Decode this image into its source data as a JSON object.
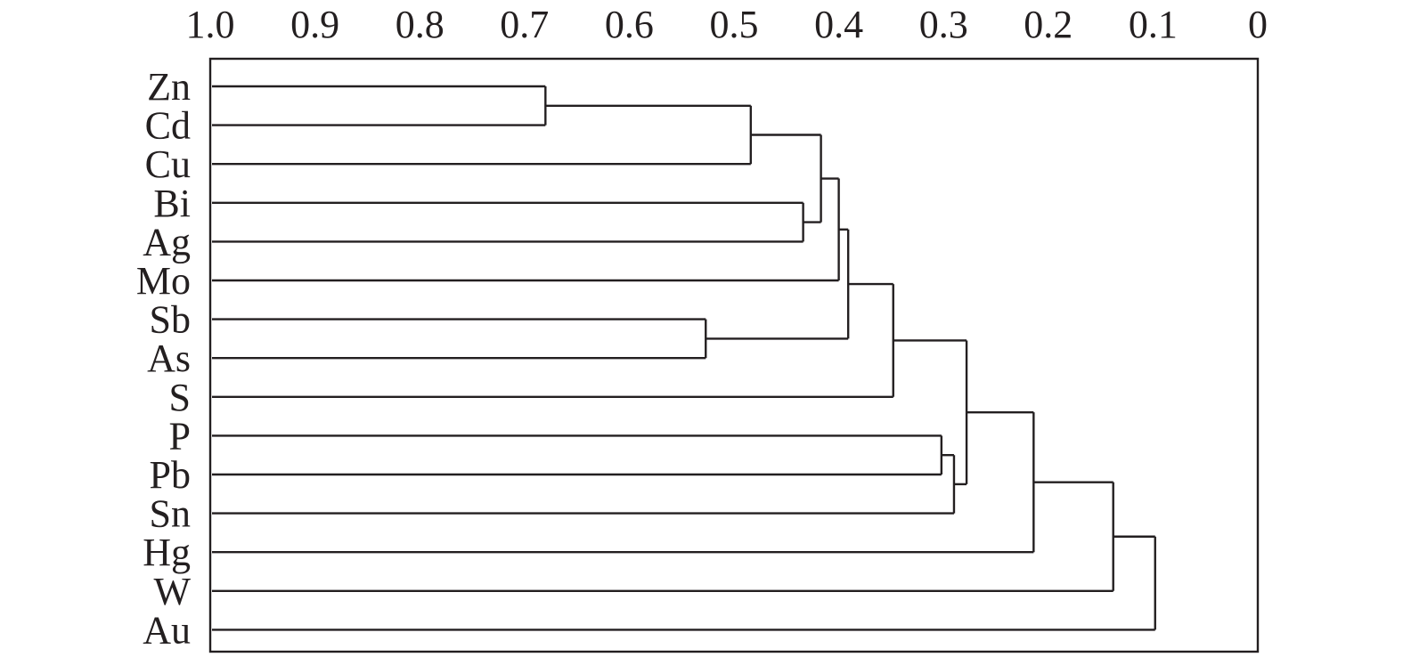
{
  "chart_data": {
    "type": "dendrogram",
    "x_axis": {
      "ticks": [
        1.0,
        0.9,
        0.8,
        0.7,
        0.6,
        0.5,
        0.4,
        0.3,
        0.2,
        0.1,
        0
      ],
      "tick_labels": [
        "1.0",
        "0.9",
        "0.8",
        "0.7",
        "0.6",
        "0.5",
        "0.4",
        "0.3",
        "0.2",
        "0.1",
        "0"
      ],
      "range": [
        1.0,
        0
      ],
      "position": "top"
    },
    "grid": false,
    "leaves": [
      "Zn",
      "Cd",
      "Cu",
      "Bi",
      "Ag",
      "Mo",
      "Sb",
      "As",
      "S",
      "P",
      "Pb",
      "Sn",
      "Hg",
      "W",
      "Au"
    ],
    "merges": [
      {
        "a": "Zn",
        "b": "Cd",
        "value": 0.68
      },
      {
        "a": "Zn+Cd",
        "b": "Cu",
        "value": 0.484
      },
      {
        "a": "Bi",
        "b": "Ag",
        "value": 0.434
      },
      {
        "a": "Zn+Cd+Cu",
        "b": "Bi+Ag",
        "value": 0.417
      },
      {
        "a": "Zn–Ag",
        "b": "Mo",
        "value": 0.4
      },
      {
        "a": "Sb",
        "b": "As",
        "value": 0.527
      },
      {
        "a": "Zn–Mo",
        "b": "Sb+As",
        "value": 0.391
      },
      {
        "a": "Zn–As",
        "b": "S",
        "value": 0.348
      },
      {
        "a": "P",
        "b": "Pb",
        "value": 0.302
      },
      {
        "a": "P+Pb",
        "b": "Sn",
        "value": 0.29
      },
      {
        "a": "Zn–S",
        "b": "P+Pb+Sn",
        "value": 0.278
      },
      {
        "a": "Zn–Sn",
        "b": "Hg",
        "value": 0.214
      },
      {
        "a": "Zn–Hg",
        "b": "W",
        "value": 0.138
      },
      {
        "a": "Zn–W",
        "b": "Au",
        "value": 0.098
      }
    ]
  }
}
